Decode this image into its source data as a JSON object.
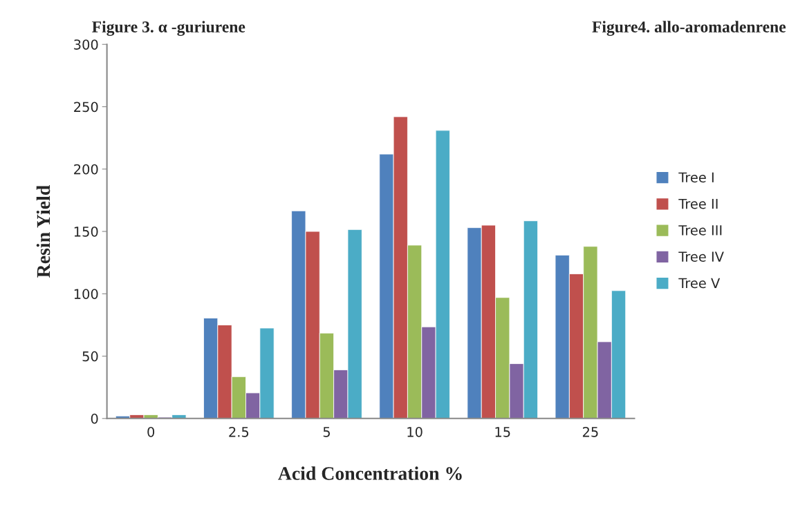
{
  "chart_data": {
    "type": "bar",
    "xlabel": "Acid Concentration %",
    "ylabel": "Resin Yield",
    "annotations": [
      "Figure 3. α -guriurene",
      "Figure4. allo-aromadenrene"
    ],
    "categories": [
      "0",
      "2.5",
      "5",
      "10",
      "15",
      "25"
    ],
    "series": [
      {
        "name": "Tree I",
        "color": "#4f81bd",
        "values": [
          2,
          80.5,
          166.5,
          212,
          153,
          131
        ]
      },
      {
        "name": "Tree II",
        "color": "#c0504d",
        "values": [
          3,
          75,
          150,
          242,
          155,
          116
        ]
      },
      {
        "name": "Tree III",
        "color": "#9bbb59",
        "values": [
          3,
          33.5,
          68.5,
          139,
          97,
          138
        ]
      },
      {
        "name": "Tree IV",
        "color": "#8064a2",
        "values": [
          1,
          20.5,
          39,
          73.5,
          44,
          61.5
        ]
      },
      {
        "name": "Tree V",
        "color": "#4bacc6",
        "values": [
          3,
          72.5,
          151.5,
          231,
          158.5,
          102.5
        ]
      }
    ],
    "ylim": [
      0,
      300
    ],
    "yticks": [
      0,
      50,
      100,
      150,
      200,
      250,
      300
    ],
    "grid": false,
    "legend": "right"
  }
}
